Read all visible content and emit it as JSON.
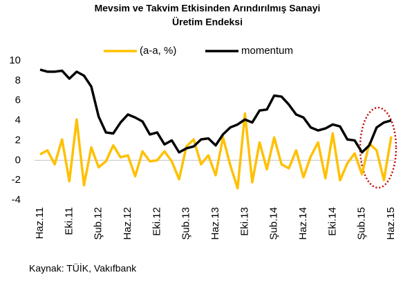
{
  "chart_data": {
    "type": "line",
    "title": [
      "Mevsim ve Takvim Etkisinden Arındırılmış Sanayi",
      "Üretim Endeksi"
    ],
    "source": "Kaynak: TÜİK, Vakıfbank",
    "categories": [
      "Haz.11",
      null,
      null,
      null,
      "Eki.11",
      null,
      null,
      null,
      "Şub.12",
      null,
      null,
      null,
      "Haz.12",
      null,
      null,
      null,
      "Eki.12",
      null,
      null,
      null,
      "Şub.13",
      null,
      null,
      null,
      "Haz.13",
      null,
      null,
      null,
      "Eki.13",
      null,
      null,
      null,
      "Şub.14",
      null,
      null,
      null,
      "Haz.14",
      null,
      null,
      null,
      "Eki.14",
      null,
      null,
      null,
      "Şub.15",
      null,
      null,
      null,
      "Haz.15"
    ],
    "series": [
      {
        "name": "(a-a, %)",
        "color": "#ffc000",
        "values": [
          0.6,
          1.0,
          -0.4,
          2.1,
          -2.1,
          4.1,
          -2.5,
          1.3,
          -0.7,
          -0.1,
          1.5,
          0.3,
          0.5,
          -1.6,
          0.9,
          -0.1,
          0.0,
          0.9,
          -0.1,
          -1.9,
          1.4,
          2.1,
          -0.4,
          0.5,
          -1.5,
          2.3,
          -0.5,
          -2.8,
          4.7,
          -2.2,
          1.8,
          -0.9,
          2.3,
          -0.4,
          -0.8,
          1.0,
          -1.7,
          0.4,
          1.8,
          -1.8,
          2.7,
          -2.0,
          -0.3,
          0.7,
          -1.4,
          1.7,
          1.0,
          -2.0,
          2.4
        ]
      },
      {
        "name": "momentum",
        "color": "#000000",
        "values": [
          9.1,
          8.9,
          8.9,
          9.0,
          8.2,
          8.9,
          8.5,
          7.4,
          4.4,
          2.8,
          2.7,
          3.8,
          4.6,
          4.3,
          3.9,
          2.6,
          2.8,
          1.6,
          2.0,
          0.8,
          1.2,
          1.4,
          2.1,
          2.2,
          1.5,
          2.6,
          3.3,
          3.6,
          4.1,
          3.8,
          5.0,
          5.1,
          6.5,
          6.4,
          5.6,
          4.6,
          4.3,
          3.3,
          3.0,
          3.2,
          3.6,
          3.4,
          2.1,
          2.0,
          0.8,
          1.5,
          3.3,
          3.8,
          4.0
        ]
      }
    ],
    "ylim": [
      -4,
      10
    ],
    "yticks": [
      -4,
      -2,
      0,
      2,
      4,
      6,
      8,
      10
    ],
    "grid": false
  }
}
